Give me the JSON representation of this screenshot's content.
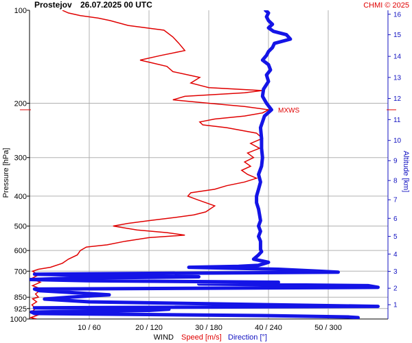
{
  "header": {
    "station": "Prostejov",
    "datetime": "26.07.2025 00 UTC",
    "credit": "CHMI © 2025"
  },
  "axes": {
    "y_title": "Pressure [hPa]",
    "y2_title": "Altitude [km]",
    "x_title_wind": "WIND",
    "x_title_speed": "Speed [m/s]",
    "x_title_direction": "Direction [°]"
  },
  "mxws_label": "MXWS",
  "colors": {
    "speed": "#e00000",
    "direction": "#1414e6",
    "grid": "#b0b0b0",
    "axis": "#000000",
    "altitude_axis": "#1010c0"
  },
  "chart_data": {
    "type": "line",
    "title": "Prostejov 26.07.2025 00 UTC",
    "y_scale": "log",
    "ylim_hpa": [
      1000,
      100
    ],
    "y_ticks_hpa": [
      100,
      200,
      300,
      400,
      500,
      600,
      700,
      850,
      925,
      1000
    ],
    "x_ticks": [
      {
        "speed": 10,
        "direction": 60,
        "label": "10 / 60"
      },
      {
        "speed": 20,
        "direction": 120,
        "label": "20 / 120"
      },
      {
        "speed": 30,
        "direction": 180,
        "label": "30 / 180"
      },
      {
        "speed": 40,
        "direction": 240,
        "label": "40 / 240"
      },
      {
        "speed": 50,
        "direction": 300,
        "label": "50 / 300"
      }
    ],
    "xlim_speed": [
      0,
      60
    ],
    "xlim_direction": [
      0,
      360
    ],
    "altitude_ticks_km": [
      1,
      2,
      3,
      4,
      5,
      6,
      7,
      8,
      9,
      10,
      11,
      12,
      13,
      14,
      15,
      16
    ],
    "mxws": {
      "pressure": 210,
      "speed": 40
    },
    "series": [
      {
        "name": "Speed [m/s]",
        "unit": "m/s",
        "points": [
          [
            1000,
            1.2
          ],
          [
            990,
            0.2
          ],
          [
            970,
            1.5
          ],
          [
            950,
            0.3
          ],
          [
            925,
            1.0
          ],
          [
            900,
            0.4
          ],
          [
            880,
            1.2
          ],
          [
            860,
            0.5
          ],
          [
            850,
            1.5
          ],
          [
            830,
            1.0
          ],
          [
            800,
            2.0
          ],
          [
            780,
            0.5
          ],
          [
            760,
            1.8
          ],
          [
            740,
            0.3
          ],
          [
            720,
            1.5
          ],
          [
            700,
            0.5
          ],
          [
            690,
            1.5
          ],
          [
            680,
            3.5
          ],
          [
            660,
            5.5
          ],
          [
            640,
            6.5
          ],
          [
            620,
            8.0
          ],
          [
            600,
            8.5
          ],
          [
            585,
            9.5
          ],
          [
            575,
            13.0
          ],
          [
            560,
            16.0
          ],
          [
            545,
            20.0
          ],
          [
            535,
            26.0
          ],
          [
            525,
            23.0
          ],
          [
            515,
            18.0
          ],
          [
            500,
            14.0
          ],
          [
            490,
            16.5
          ],
          [
            480,
            20.0
          ],
          [
            470,
            24.0
          ],
          [
            460,
            27.5
          ],
          [
            450,
            29.5
          ],
          [
            430,
            31.0
          ],
          [
            410,
            28.0
          ],
          [
            400,
            26.5
          ],
          [
            390,
            27.0
          ],
          [
            380,
            31.0
          ],
          [
            370,
            33.0
          ],
          [
            360,
            36.0
          ],
          [
            350,
            38.0
          ],
          [
            340,
            36.5
          ],
          [
            330,
            35.5
          ],
          [
            320,
            37.0
          ],
          [
            310,
            36.0
          ],
          [
            300,
            37.5
          ],
          [
            290,
            36.5
          ],
          [
            280,
            38.5
          ],
          [
            270,
            37.0
          ],
          [
            260,
            39.0
          ],
          [
            250,
            38.0
          ],
          [
            240,
            33.0
          ],
          [
            235,
            29.0
          ],
          [
            230,
            28.5
          ],
          [
            225,
            31.0
          ],
          [
            220,
            36.0
          ],
          [
            215,
            39.0
          ],
          [
            210,
            40.0
          ],
          [
            205,
            36.0
          ],
          [
            200,
            30.0
          ],
          [
            195,
            24.0
          ],
          [
            190,
            26.0
          ],
          [
            185,
            36.0
          ],
          [
            182,
            39.0
          ],
          [
            178,
            30.0
          ],
          [
            172,
            27.0
          ],
          [
            165,
            28.5
          ],
          [
            158,
            24.0
          ],
          [
            152,
            23.0
          ],
          [
            148,
            20.5
          ],
          [
            145,
            18.5
          ],
          [
            140,
            22.0
          ],
          [
            135,
            26.0
          ],
          [
            128,
            25.0
          ],
          [
            122,
            24.0
          ],
          [
            116,
            22.5
          ],
          [
            112,
            16.5
          ],
          [
            108,
            13.5
          ],
          [
            106,
            11.5
          ],
          [
            104,
            8.5
          ],
          [
            102,
            6.5
          ],
          [
            100,
            5.5
          ]
        ]
      },
      {
        "name": "Direction [°]",
        "unit": "deg",
        "points": [
          [
            990,
            330
          ],
          [
            985,
            320
          ],
          [
            975,
            240
          ],
          [
            965,
            80
          ],
          [
            960,
            5
          ],
          [
            950,
            2
          ],
          [
            945,
            50
          ],
          [
            938,
            120
          ],
          [
            930,
            140
          ],
          [
            920,
            5
          ],
          [
            910,
            350
          ],
          [
            880,
            60
          ],
          [
            862,
            15
          ],
          [
            850,
            40
          ],
          [
            835,
            80
          ],
          [
            820,
            40
          ],
          [
            810,
            10
          ],
          [
            800,
            5
          ],
          [
            790,
            350
          ],
          [
            780,
            340
          ],
          [
            770,
            170
          ],
          [
            760,
            250
          ],
          [
            752,
            60
          ],
          [
            745,
            1
          ],
          [
            738,
            40
          ],
          [
            730,
            170
          ],
          [
            722,
            60
          ],
          [
            716,
            5
          ],
          [
            705,
            310
          ],
          [
            700,
            290
          ],
          [
            690,
            250
          ],
          [
            680,
            160
          ],
          [
            675,
            210
          ],
          [
            670,
            230
          ],
          [
            655,
            240
          ],
          [
            640,
            225
          ],
          [
            620,
            230
          ],
          [
            605,
            233
          ],
          [
            595,
            232
          ],
          [
            580,
            232
          ],
          [
            560,
            232
          ],
          [
            540,
            230
          ],
          [
            520,
            232
          ],
          [
            500,
            230
          ],
          [
            480,
            232
          ],
          [
            460,
            231
          ],
          [
            440,
            230
          ],
          [
            420,
            228
          ],
          [
            400,
            228
          ],
          [
            380,
            230
          ],
          [
            360,
            232
          ],
          [
            340,
            230
          ],
          [
            320,
            233
          ],
          [
            300,
            234
          ],
          [
            280,
            233
          ],
          [
            260,
            233
          ],
          [
            240,
            232
          ],
          [
            220,
            236
          ],
          [
            210,
            243
          ],
          [
            200,
            238
          ],
          [
            190,
            234
          ],
          [
            180,
            235
          ],
          [
            170,
            240
          ],
          [
            162,
            238
          ],
          [
            156,
            242
          ],
          [
            150,
            240
          ],
          [
            145,
            234
          ],
          [
            140,
            238
          ],
          [
            136,
            240
          ],
          [
            132,
            244
          ],
          [
            128,
            246
          ],
          [
            124,
            262
          ],
          [
            120,
            258
          ],
          [
            117,
            245
          ],
          [
            114,
            240
          ],
          [
            111,
            244
          ],
          [
            108,
            240
          ],
          [
            105,
            238
          ],
          [
            102,
            240
          ],
          [
            100,
            237
          ]
        ]
      }
    ]
  }
}
